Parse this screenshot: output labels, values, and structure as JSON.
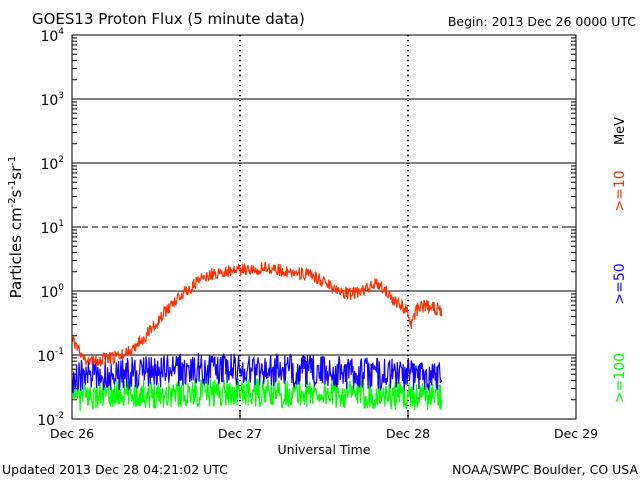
{
  "chart_data": {
    "type": "line",
    "title": "GOES13 Proton Flux (5 minute data)",
    "begin": "Begin: 2013 Dec 26 0000 UTC",
    "xlabel": "Universal Time",
    "ylabel_parts": [
      "Particles cm",
      "-2",
      "s",
      "-1",
      "sr",
      "-1"
    ],
    "footer_left": "Updated 2013 Dec 28 04:21:02 UTC",
    "footer_right": "NOAA/SWPC Boulder, CO USA",
    "x_unit": "days since 2013 Dec 26 0000 UTC",
    "xlim": [
      0,
      3
    ],
    "x_ticks": [
      {
        "value": 0,
        "label": "Dec 26"
      },
      {
        "value": 1,
        "label": "Dec 27"
      },
      {
        "value": 2,
        "label": "Dec 28"
      },
      {
        "value": 3,
        "label": "Dec 29"
      }
    ],
    "y_scale": "log",
    "ylim_exp": [
      -2,
      4
    ],
    "y_ticks": [
      {
        "exp": -2,
        "base": "10",
        "sup": "-2"
      },
      {
        "exp": -1,
        "base": "10",
        "sup": "-1"
      },
      {
        "exp": 0,
        "base": "10",
        "sup": "0"
      },
      {
        "exp": 1,
        "base": "10",
        "sup": "1"
      },
      {
        "exp": 2,
        "base": "10",
        "sup": "2"
      },
      {
        "exp": 3,
        "base": "10",
        "sup": "3"
      },
      {
        "exp": 4,
        "base": "10",
        "sup": "4"
      }
    ],
    "threshold_lines": [
      {
        "exp": -1,
        "style": "solid"
      },
      {
        "exp": 0,
        "style": "solid"
      },
      {
        "exp": 1,
        "style": "dashed"
      },
      {
        "exp": 2,
        "style": "solid"
      },
      {
        "exp": 3,
        "style": "solid"
      }
    ],
    "legend_unit": "MeV",
    "series": [
      {
        "name": ">=10",
        "color": "#ff3000",
        "x": [
          0.0,
          0.02,
          0.05,
          0.08,
          0.12,
          0.16,
          0.2,
          0.25,
          0.3,
          0.35,
          0.4,
          0.45,
          0.5,
          0.55,
          0.6,
          0.65,
          0.7,
          0.75,
          0.8,
          0.85,
          0.9,
          0.95,
          1.0,
          1.05,
          1.1,
          1.15,
          1.2,
          1.25,
          1.3,
          1.35,
          1.4,
          1.45,
          1.5,
          1.55,
          1.6,
          1.65,
          1.7,
          1.75,
          1.8,
          1.85,
          1.9,
          1.95,
          2.0,
          2.02,
          2.05,
          2.1,
          2.15,
          2.2
        ],
        "y": [
          0.2,
          0.15,
          0.1,
          0.09,
          0.08,
          0.08,
          0.09,
          0.09,
          0.1,
          0.12,
          0.16,
          0.22,
          0.32,
          0.45,
          0.65,
          0.85,
          1.1,
          1.4,
          1.7,
          1.9,
          2.0,
          2.1,
          2.1,
          2.2,
          2.2,
          2.3,
          2.2,
          2.1,
          2.0,
          1.9,
          1.8,
          1.6,
          1.4,
          1.2,
          1.0,
          0.9,
          0.95,
          1.05,
          1.3,
          1.1,
          0.8,
          0.6,
          0.5,
          0.3,
          0.5,
          0.6,
          0.55,
          0.5
        ]
      },
      {
        "name": ">=50",
        "color": "#1400ff",
        "x": [
          0.0,
          0.25,
          0.5,
          0.75,
          1.0,
          1.25,
          1.5,
          1.75,
          2.0,
          2.2
        ],
        "y": [
          0.045,
          0.05,
          0.055,
          0.06,
          0.06,
          0.058,
          0.055,
          0.052,
          0.05,
          0.05
        ]
      },
      {
        "name": ">=100",
        "color": "#00ff00",
        "x": [
          0.0,
          0.25,
          0.5,
          0.75,
          1.0,
          1.25,
          1.5,
          1.75,
          2.0,
          2.2
        ],
        "y": [
          0.022,
          0.024,
          0.025,
          0.026,
          0.026,
          0.025,
          0.025,
          0.024,
          0.023,
          0.023
        ]
      }
    ]
  }
}
